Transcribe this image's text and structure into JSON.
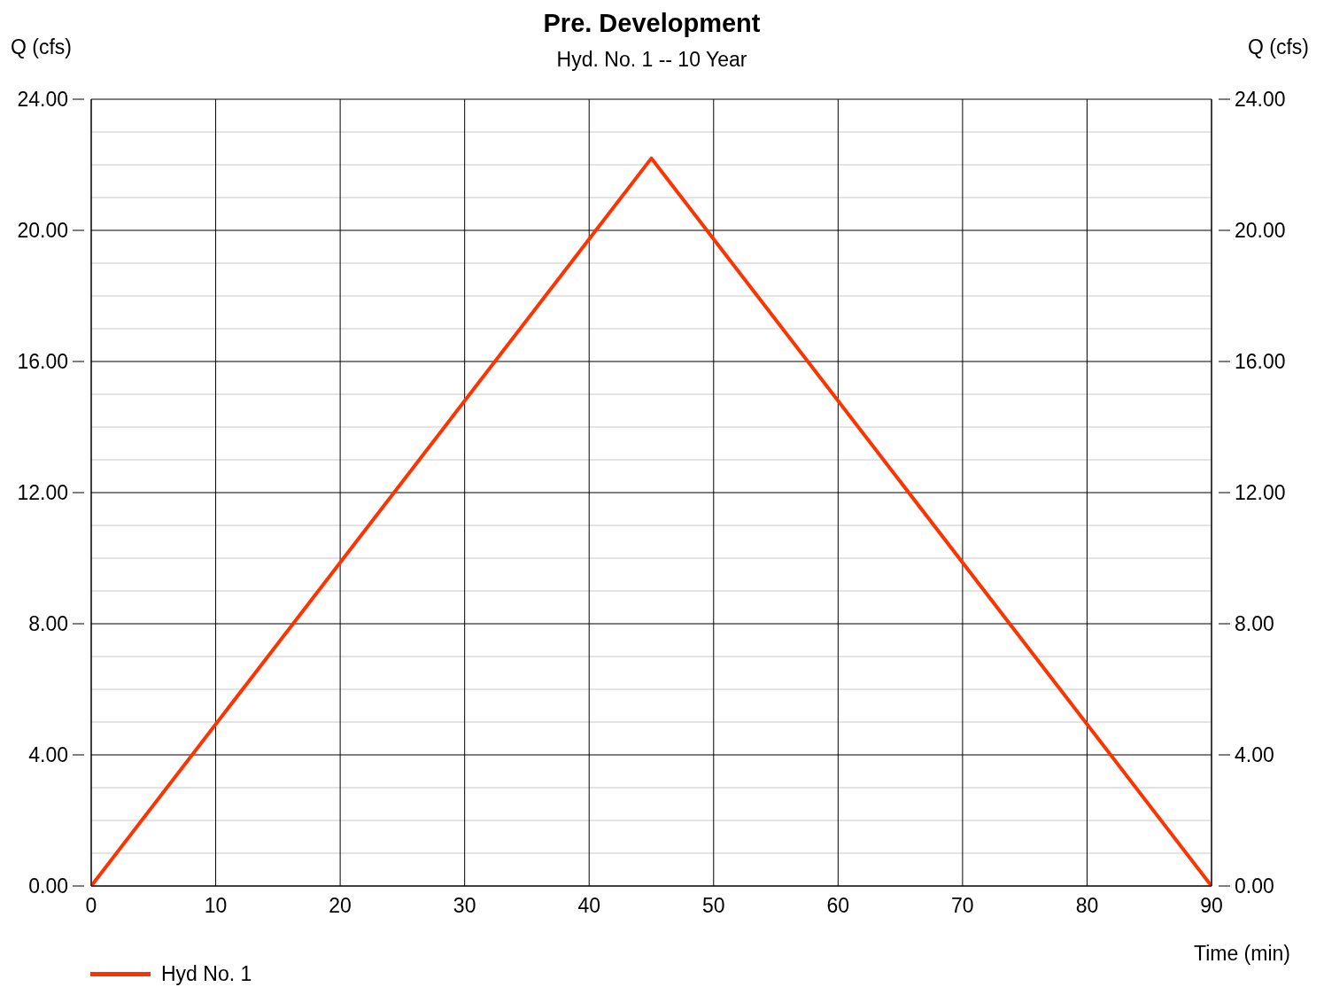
{
  "chart_data": {
    "type": "line",
    "title": "Pre. Development",
    "subtitle": "Hyd. No. 1 -- 10 Year",
    "xlabel": "Time (min)",
    "ylabel": "Q (cfs)",
    "y2label": "Q (cfs)",
    "x": [
      0,
      45,
      90
    ],
    "series": [
      {
        "name": "Hyd No. 1",
        "color": "#ff3300",
        "values": [
          0,
          22.2,
          0
        ]
      }
    ],
    "xlim": [
      0,
      90
    ],
    "xticks": [
      0,
      10,
      20,
      30,
      40,
      50,
      60,
      70,
      80,
      90
    ],
    "ylim": [
      0,
      24
    ],
    "yticks": [
      {
        "value": 0,
        "label": "0.00"
      },
      {
        "value": 1,
        "label": null
      },
      {
        "value": 2,
        "label": null
      },
      {
        "value": 3,
        "label": null
      },
      {
        "value": 4,
        "label": "4.00"
      },
      {
        "value": 5,
        "label": null
      },
      {
        "value": 6,
        "label": null
      },
      {
        "value": 7,
        "label": null
      },
      {
        "value": 8,
        "label": "8.00"
      },
      {
        "value": 9,
        "label": null
      },
      {
        "value": 10,
        "label": null
      },
      {
        "value": 11,
        "label": null
      },
      {
        "value": 12,
        "label": "12.00"
      },
      {
        "value": 13,
        "label": null
      },
      {
        "value": 14,
        "label": null
      },
      {
        "value": 15,
        "label": null
      },
      {
        "value": 16,
        "label": "16.00"
      },
      {
        "value": 17,
        "label": null
      },
      {
        "value": 18,
        "label": null
      },
      {
        "value": 19,
        "label": null
      },
      {
        "value": 20,
        "label": "20.00"
      },
      {
        "value": 21,
        "label": null
      },
      {
        "value": 22,
        "label": null
      },
      {
        "value": 23,
        "label": null
      },
      {
        "value": 24,
        "label": "24.00"
      }
    ],
    "y2lim": [
      0,
      24
    ],
    "y2ticks": [
      {
        "value": 0,
        "label": "0.00"
      },
      {
        "value": 4,
        "label": "4.00"
      },
      {
        "value": 8,
        "label": "8.00"
      },
      {
        "value": 12,
        "label": "12.00"
      },
      {
        "value": 16,
        "label": "16.00"
      },
      {
        "value": 20,
        "label": "20.00"
      },
      {
        "value": 24,
        "label": "24.00"
      }
    ],
    "grid": true,
    "legend": "bottom left",
    "marker": "none",
    "line_style": "solid"
  }
}
